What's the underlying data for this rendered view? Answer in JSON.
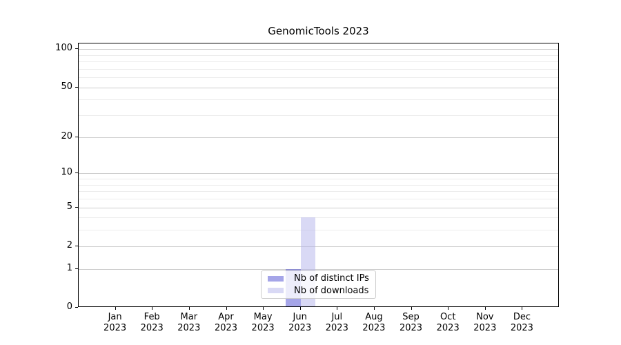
{
  "chart_data": {
    "type": "bar",
    "title": "GenomicTools 2023",
    "categories": [
      "Jan 2023",
      "Feb 2023",
      "Mar 2023",
      "Apr 2023",
      "May 2023",
      "Jun 2023",
      "Jul 2023",
      "Aug 2023",
      "Sep 2023",
      "Oct 2023",
      "Nov 2023",
      "Dec 2023"
    ],
    "series": [
      {
        "name": "Nb of distinct IPs",
        "values": [
          0,
          0,
          0,
          0,
          0,
          1,
          0,
          0,
          0,
          0,
          0,
          0
        ],
        "bar_color": "rgba(75,75,209,0.5)",
        "swatch_color": "#a5a5e8"
      },
      {
        "name": "Nb of downloads",
        "values": [
          0,
          0,
          0,
          0,
          0,
          4,
          0,
          0,
          0,
          0,
          0,
          0
        ],
        "bar_color": "rgba(179,179,235,0.5)",
        "swatch_color": "#d9d9f5"
      }
    ],
    "xlabel": "",
    "ylabel": "",
    "yscale": "log(1+y)",
    "y_major_ticks": [
      0,
      1,
      2,
      5,
      10,
      20,
      50,
      100
    ],
    "y_minor_ticks": [
      3,
      4,
      6,
      7,
      8,
      9,
      30,
      40,
      60,
      70,
      80,
      90
    ],
    "ylim": [
      0,
      112
    ],
    "grid": true,
    "legend_position": "lower-center",
    "colors": {
      "major_grid": "#cccccc",
      "minor_grid": "#ececec",
      "spine": "#000000",
      "text": "#000000",
      "legend_border": "#cccccc",
      "background": "#ffffff"
    }
  }
}
